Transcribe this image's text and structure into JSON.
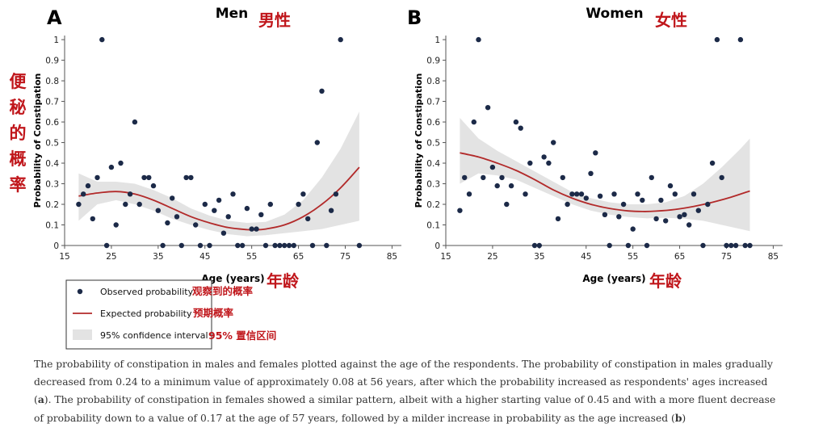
{
  "chart_data": [
    {
      "type": "scatter",
      "panel_letter": "A",
      "title": "Men",
      "title_cn": "男性",
      "xlabel": "Age (years)",
      "xlabel_cn": "年龄",
      "ylabel": "Probability of Constipation",
      "ylabel_cn": [
        "便",
        "秘",
        "的",
        "概",
        "率"
      ],
      "xlim": [
        15,
        87
      ],
      "ylim": [
        0,
        1.02
      ],
      "xticks": [
        "15",
        "25",
        "35",
        "45",
        "55",
        "65",
        "75",
        "85"
      ],
      "yticks": [
        "0",
        "0.1",
        "0.2",
        "0.3",
        "0.4",
        "0.5",
        "0.6",
        "0.7",
        "0.8",
        "0.9",
        "1"
      ],
      "series": [
        {
          "name": "Observed probability",
          "name_cn": "观察到的概率",
          "points": [
            [
              18,
              0.2
            ],
            [
              19,
              0.25
            ],
            [
              20,
              0.29
            ],
            [
              21,
              0.13
            ],
            [
              22,
              0.33
            ],
            [
              23,
              1.0
            ],
            [
              24,
              0.0
            ],
            [
              25,
              0.38
            ],
            [
              26,
              0.1
            ],
            [
              27,
              0.4
            ],
            [
              28,
              0.2
            ],
            [
              29,
              0.25
            ],
            [
              30,
              0.6
            ],
            [
              31,
              0.2
            ],
            [
              32,
              0.33
            ],
            [
              33,
              0.33
            ],
            [
              34,
              0.29
            ],
            [
              35,
              0.17
            ],
            [
              36,
              0.0
            ],
            [
              37,
              0.11
            ],
            [
              38,
              0.23
            ],
            [
              39,
              0.14
            ],
            [
              40,
              0.0
            ],
            [
              41,
              0.33
            ],
            [
              42,
              0.33
            ],
            [
              43,
              0.1
            ],
            [
              44,
              0.0
            ],
            [
              45,
              0.2
            ],
            [
              46,
              0.0
            ],
            [
              47,
              0.17
            ],
            [
              48,
              0.22
            ],
            [
              49,
              0.06
            ],
            [
              50,
              0.14
            ],
            [
              51,
              0.25
            ],
            [
              52,
              0.0
            ],
            [
              53,
              0.0
            ],
            [
              54,
              0.18
            ],
            [
              55,
              0.08
            ],
            [
              56,
              0.08
            ],
            [
              57,
              0.15
            ],
            [
              58,
              0.0
            ],
            [
              59,
              0.2
            ],
            [
              60,
              0.0
            ],
            [
              61,
              0.0
            ],
            [
              62,
              0.0
            ],
            [
              63,
              0.0
            ],
            [
              64,
              0.0
            ],
            [
              65,
              0.2
            ],
            [
              66,
              0.25
            ],
            [
              67,
              0.13
            ],
            [
              68,
              0.0
            ],
            [
              69,
              0.5
            ],
            [
              70,
              0.75
            ],
            [
              71,
              0.0
            ],
            [
              72,
              0.17
            ],
            [
              73,
              0.25
            ],
            [
              74,
              1.0
            ],
            [
              78,
              0.0
            ]
          ]
        },
        {
          "name": "Expected probability",
          "name_cn": "预期概率",
          "points": [
            [
              18,
              0.24
            ],
            [
              22,
              0.255
            ],
            [
              26,
              0.262
            ],
            [
              30,
              0.25
            ],
            [
              34,
              0.22
            ],
            [
              38,
              0.18
            ],
            [
              42,
              0.14
            ],
            [
              46,
              0.11
            ],
            [
              50,
              0.087
            ],
            [
              54,
              0.077
            ],
            [
              56,
              0.076
            ],
            [
              58,
              0.08
            ],
            [
              62,
              0.1
            ],
            [
              66,
              0.14
            ],
            [
              70,
              0.2
            ],
            [
              74,
              0.28
            ],
            [
              78,
              0.38
            ]
          ]
        },
        {
          "name": "95% confidence interval",
          "name_cn": "95% 置信区间",
          "upper": [
            [
              18,
              0.35
            ],
            [
              22,
              0.31
            ],
            [
              26,
              0.31
            ],
            [
              30,
              0.3
            ],
            [
              34,
              0.27
            ],
            [
              38,
              0.23
            ],
            [
              42,
              0.18
            ],
            [
              46,
              0.145
            ],
            [
              50,
              0.12
            ],
            [
              54,
              0.11
            ],
            [
              58,
              0.115
            ],
            [
              62,
              0.15
            ],
            [
              66,
              0.22
            ],
            [
              70,
              0.33
            ],
            [
              74,
              0.47
            ],
            [
              78,
              0.65
            ]
          ],
          "lower": [
            [
              18,
              0.12
            ],
            [
              22,
              0.2
            ],
            [
              26,
              0.22
            ],
            [
              30,
              0.2
            ],
            [
              34,
              0.17
            ],
            [
              38,
              0.13
            ],
            [
              42,
              0.1
            ],
            [
              46,
              0.075
            ],
            [
              50,
              0.055
            ],
            [
              54,
              0.045
            ],
            [
              58,
              0.05
            ],
            [
              62,
              0.06
            ],
            [
              66,
              0.07
            ],
            [
              70,
              0.08
            ],
            [
              74,
              0.1
            ],
            [
              78,
              0.12
            ]
          ]
        }
      ]
    },
    {
      "type": "scatter",
      "panel_letter": "B",
      "title": "Women",
      "title_cn": "女性",
      "xlabel": "Age (years)",
      "xlabel_cn": "年龄",
      "ylabel": "Probability of Constipation",
      "xlim": [
        15,
        87
      ],
      "ylim": [
        0,
        1.02
      ],
      "xticks": [
        "15",
        "25",
        "35",
        "45",
        "55",
        "65",
        "75",
        "85"
      ],
      "yticks": [
        "0",
        "0.1",
        "0.2",
        "0.3",
        "0.4",
        "0.5",
        "0.6",
        "0.7",
        "0.8",
        "0.9",
        "1"
      ],
      "series": [
        {
          "name": "Observed probability",
          "points": [
            [
              18,
              0.17
            ],
            [
              19,
              0.33
            ],
            [
              20,
              0.25
            ],
            [
              21,
              0.6
            ],
            [
              22,
              1.0
            ],
            [
              23,
              0.33
            ],
            [
              24,
              0.67
            ],
            [
              25,
              0.38
            ],
            [
              26,
              0.29
            ],
            [
              27,
              0.33
            ],
            [
              28,
              0.2
            ],
            [
              29,
              0.29
            ],
            [
              30,
              0.6
            ],
            [
              31,
              0.57
            ],
            [
              32,
              0.25
            ],
            [
              33,
              0.4
            ],
            [
              34,
              0.0
            ],
            [
              35,
              0.0
            ],
            [
              36,
              0.43
            ],
            [
              37,
              0.4
            ],
            [
              38,
              0.5
            ],
            [
              39,
              0.13
            ],
            [
              40,
              0.33
            ],
            [
              41,
              0.2
            ],
            [
              42,
              0.25
            ],
            [
              43,
              0.25
            ],
            [
              44,
              0.25
            ],
            [
              45,
              0.23
            ],
            [
              46,
              0.35
            ],
            [
              47,
              0.45
            ],
            [
              48,
              0.24
            ],
            [
              49,
              0.15
            ],
            [
              50,
              0.0
            ],
            [
              51,
              0.25
            ],
            [
              52,
              0.14
            ],
            [
              53,
              0.2
            ],
            [
              54,
              0.0
            ],
            [
              55,
              0.08
            ],
            [
              56,
              0.25
            ],
            [
              57,
              0.22
            ],
            [
              58,
              0.0
            ],
            [
              59,
              0.33
            ],
            [
              60,
              0.13
            ],
            [
              61,
              0.22
            ],
            [
              62,
              0.12
            ],
            [
              63,
              0.29
            ],
            [
              64,
              0.25
            ],
            [
              65,
              0.14
            ],
            [
              66,
              0.15
            ],
            [
              67,
              0.1
            ],
            [
              68,
              0.25
            ],
            [
              69,
              0.17
            ],
            [
              70,
              0.0
            ],
            [
              71,
              0.2
            ],
            [
              72,
              0.4
            ],
            [
              73,
              1.0
            ],
            [
              74,
              0.33
            ],
            [
              75,
              0.0
            ],
            [
              76,
              0.0
            ],
            [
              77,
              0.0
            ],
            [
              78,
              1.0
            ],
            [
              79,
              0.0
            ],
            [
              80,
              0.0
            ]
          ]
        },
        {
          "name": "Expected probability",
          "points": [
            [
              18,
              0.45
            ],
            [
              22,
              0.43
            ],
            [
              26,
              0.4
            ],
            [
              30,
              0.365
            ],
            [
              34,
              0.32
            ],
            [
              38,
              0.27
            ],
            [
              42,
              0.23
            ],
            [
              46,
              0.2
            ],
            [
              50,
              0.18
            ],
            [
              54,
              0.168
            ],
            [
              57,
              0.165
            ],
            [
              60,
              0.167
            ],
            [
              64,
              0.175
            ],
            [
              68,
              0.19
            ],
            [
              72,
              0.21
            ],
            [
              76,
              0.235
            ],
            [
              80,
              0.265
            ]
          ]
        },
        {
          "name": "95% confidence interval",
          "upper": [
            [
              18,
              0.62
            ],
            [
              22,
              0.52
            ],
            [
              26,
              0.46
            ],
            [
              30,
              0.41
            ],
            [
              34,
              0.36
            ],
            [
              38,
              0.31
            ],
            [
              42,
              0.26
            ],
            [
              46,
              0.23
            ],
            [
              50,
              0.21
            ],
            [
              54,
              0.2
            ],
            [
              58,
              0.2
            ],
            [
              62,
              0.21
            ],
            [
              66,
              0.24
            ],
            [
              70,
              0.3
            ],
            [
              74,
              0.38
            ],
            [
              78,
              0.47
            ],
            [
              80,
              0.52
            ]
          ],
          "lower": [
            [
              18,
              0.3
            ],
            [
              22,
              0.35
            ],
            [
              26,
              0.34
            ],
            [
              30,
              0.32
            ],
            [
              34,
              0.28
            ],
            [
              38,
              0.24
            ],
            [
              42,
              0.2
            ],
            [
              46,
              0.17
            ],
            [
              50,
              0.15
            ],
            [
              54,
              0.138
            ],
            [
              58,
              0.132
            ],
            [
              62,
              0.135
            ],
            [
              66,
              0.13
            ],
            [
              70,
              0.12
            ],
            [
              74,
              0.1
            ],
            [
              78,
              0.08
            ],
            [
              80,
              0.07
            ]
          ]
        }
      ]
    }
  ],
  "caption": {
    "text_1": "The probability of constipation in males and females plotted against the age of the respondents. The probability of constipation in males gradually decreased from 0.24 to a minimum value of approximately 0.08 at 56 years, after which the probability increased as respondents' ages increased (",
    "bold_a": "a",
    "text_2": "). The probability of constipation in females showed a similar pattern, albeit with a higher starting value of 0.45 and with a more fluent decrease of probability down to a value of 0.17 at the age of 57 years, followed by a milder increase in probability as the age increased (",
    "bold_b": "b",
    "text_3": ")"
  },
  "colors": {
    "points": "#1c2a48",
    "line": "#b22a2a",
    "band": "#e3e3e3",
    "annotation": "#c0161b",
    "axis": "#555555"
  }
}
